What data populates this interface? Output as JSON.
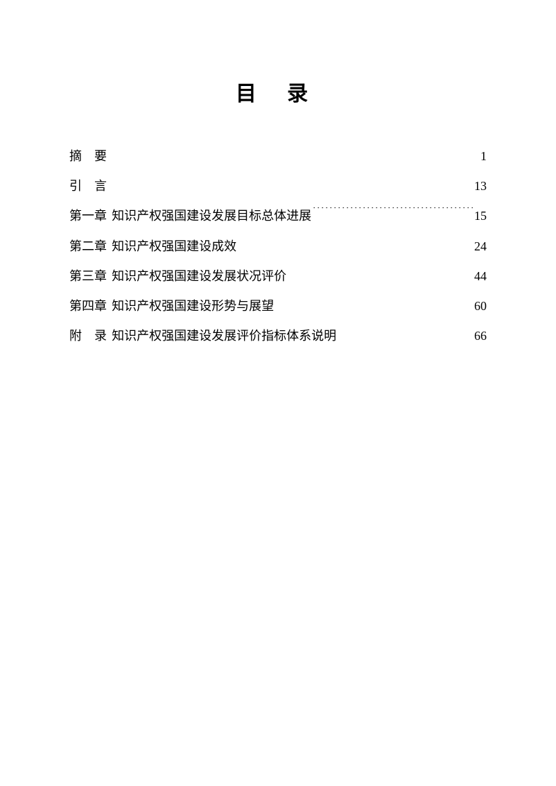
{
  "title": "目 录",
  "font": {
    "title_family": "SimHei",
    "body_family": "SimSun",
    "title_size_pt": 22,
    "body_size_pt": 14,
    "line_height": 2.4
  },
  "colors": {
    "text": "#000000",
    "background": "#ffffff",
    "dots": "#000000"
  },
  "toc": [
    {
      "label": "摘　要",
      "label_spaced": true,
      "text": "",
      "page": "1"
    },
    {
      "label": "引　言",
      "label_spaced": true,
      "text": "",
      "page": "13"
    },
    {
      "label": "第一章",
      "label_spaced": false,
      "text": "知识产权强国建设发展目标总体进展",
      "page": "15"
    },
    {
      "label": "第二章",
      "label_spaced": false,
      "text": "知识产权强国建设成效",
      "page": "24"
    },
    {
      "label": "第三章",
      "label_spaced": false,
      "text": "知识产权强国建设发展状况评价",
      "page": "44"
    },
    {
      "label": "第四章",
      "label_spaced": false,
      "text": "知识产权强国建设形势与展望",
      "page": "60"
    },
    {
      "label": "附　录",
      "label_spaced": true,
      "text": "知识产权强国建设发展评价指标体系说明",
      "page": "66"
    }
  ]
}
